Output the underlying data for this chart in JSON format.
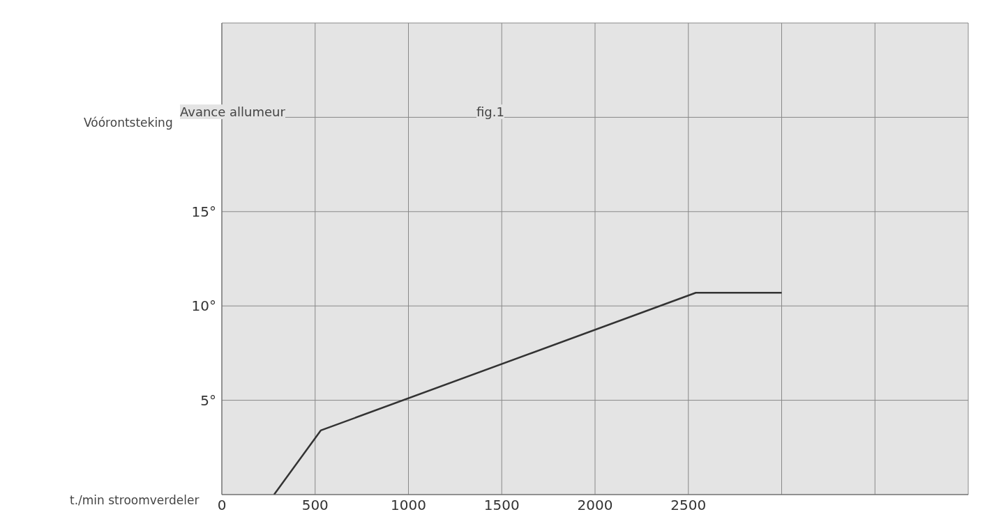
{
  "chart_data": {
    "type": "line",
    "ylabel": "Vóórontsteking",
    "xlabel": "t./min stroomverdeler",
    "annotations": [
      "Avance allumeur",
      "fig.1"
    ],
    "x": [
      280,
      530,
      2540,
      3000
    ],
    "series": [
      {
        "color": "#333333",
        "values": [
          0,
          3.4,
          10.7,
          10.7
        ]
      }
    ],
    "xlim": [
      0,
      4000
    ],
    "xticks": [
      0,
      500,
      1000,
      1500,
      2000,
      2500,
      {
        "value": 3000,
        "label": null
      },
      {
        "value": 3500,
        "label": null
      },
      {
        "value": 4000,
        "label": null
      }
    ],
    "ylim": [
      0,
      25
    ],
    "yticks": [
      {
        "value": 0,
        "label": null
      },
      {
        "value": 5,
        "label": "5°"
      },
      {
        "value": 10,
        "label": "10°"
      },
      {
        "value": 15,
        "label": "15°"
      },
      {
        "value": 20,
        "label": null
      },
      {
        "value": 25,
        "label": null
      }
    ],
    "grid": true,
    "marker": "none",
    "line_style": "solid",
    "legend": false
  }
}
